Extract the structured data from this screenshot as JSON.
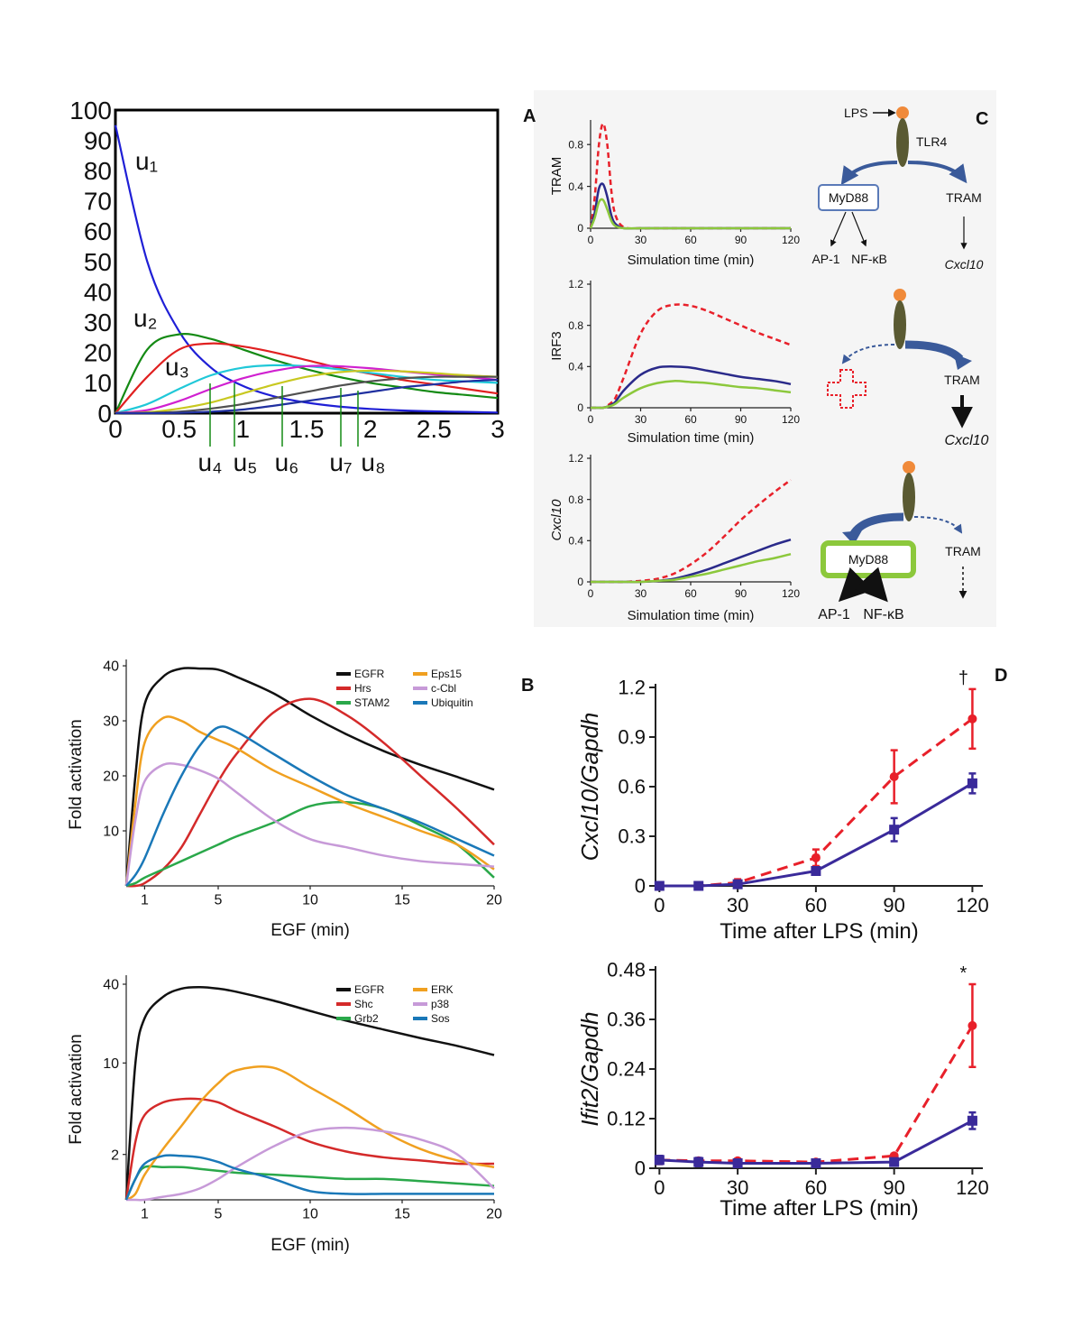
{
  "panel_labels": [
    "A",
    "B",
    "C",
    "D"
  ],
  "diagram": {
    "top": {
      "ligand": "LPS",
      "receptor": "TLR4",
      "adaptor": "MyD88",
      "tram": "TRAM",
      "ap1": "AP-1",
      "nfkb": "NF-κB",
      "target": "Cxcl10"
    },
    "middle": {
      "tram": "TRAM",
      "target": "Cxcl10"
    },
    "bottom": {
      "adaptor": "MyD88",
      "tram": "TRAM",
      "ap1": "AP-1",
      "nfkb": "NF-κB"
    }
  },
  "chart_data": [
    {
      "type": "line",
      "x": [
        0,
        0.25,
        0.5,
        0.75,
        1,
        1.25,
        1.5,
        1.75,
        2,
        2.25,
        2.5,
        2.75,
        3
      ],
      "xlim": [
        0,
        3
      ],
      "ylim": [
        0,
        100
      ],
      "xticks": [
        0,
        0.5,
        1,
        1.5,
        2,
        2.5,
        3
      ],
      "yticks": [
        0,
        10,
        20,
        30,
        40,
        50,
        60,
        70,
        80,
        90,
        100
      ],
      "series": [
        {
          "name": "u₁",
          "color": "#1f1fd6",
          "values": [
            95,
            50,
            27,
            15,
            9,
            5.5,
            3.5,
            2.2,
            1.4,
            0.9,
            0.6,
            0.4,
            0.2
          ]
        },
        {
          "name": "u₂",
          "color": "#148a14",
          "values": [
            0,
            21,
            26,
            24.5,
            21,
            17.5,
            14.5,
            12,
            10,
            8.5,
            7,
            6,
            5
          ]
        },
        {
          "name": "u₃",
          "color": "#e02020",
          "values": [
            0,
            12,
            21,
            23,
            22,
            20,
            17.5,
            15,
            13,
            11,
            9.5,
            8,
            6.5
          ]
        },
        {
          "name": "u₄",
          "color": "#20c8d8",
          "values": [
            0,
            3,
            8,
            12.5,
            15,
            15.8,
            15.5,
            14.5,
            13.3,
            12,
            11,
            10.5,
            10
          ]
        },
        {
          "name": "u₅",
          "color": "#d020d0",
          "values": [
            0,
            1,
            4,
            8,
            11.5,
            14,
            15.5,
            15.5,
            14.8,
            13.8,
            12.8,
            12,
            11
          ]
        },
        {
          "name": "u₆",
          "color": "#c8c820",
          "values": [
            0,
            0.3,
            1.5,
            3.5,
            6.5,
            9.5,
            12,
            13.5,
            14,
            13.8,
            13.2,
            12.5,
            12
          ]
        },
        {
          "name": "u₇",
          "color": "#505050",
          "values": [
            0,
            0.1,
            0.5,
            1.5,
            3,
            5,
            7,
            9,
            10.5,
            11.5,
            12,
            12,
            12
          ]
        },
        {
          "name": "u₈",
          "color": "#2030a0",
          "values": [
            0,
            0,
            0.1,
            0.5,
            1.2,
            2.5,
            4,
            5.5,
            7,
            8.5,
            9.5,
            10.5,
            11
          ]
        }
      ]
    },
    {
      "type": "line",
      "ylabel": "TRAM",
      "xlabel": "Simulation time (min)",
      "x": [
        0,
        2.5,
        5,
        7.5,
        10,
        12.5,
        15,
        20,
        30,
        40,
        50,
        60,
        70,
        80,
        90,
        100,
        110,
        120
      ],
      "xlim": [
        0,
        120
      ],
      "ylim": [
        0,
        1
      ],
      "xticks": [
        0,
        30,
        60,
        90,
        120
      ],
      "yticks": [
        0,
        0.4,
        0.8
      ],
      "series": [
        {
          "color": "#e8202a",
          "line_style": "dashed",
          "values": [
            0,
            0.3,
            0.8,
            1.0,
            0.8,
            0.35,
            0.12,
            0.01,
            0,
            0,
            0,
            0,
            0,
            0,
            0,
            0,
            0,
            0
          ]
        },
        {
          "color": "#2a2a8a",
          "values": [
            0,
            0.15,
            0.38,
            0.42,
            0.3,
            0.12,
            0.04,
            0,
            0,
            0,
            0,
            0,
            0,
            0,
            0,
            0,
            0,
            0
          ]
        },
        {
          "color": "#8cc83c",
          "values": [
            0,
            0.1,
            0.25,
            0.27,
            0.18,
            0.07,
            0.02,
            0,
            0,
            0,
            0,
            0,
            0,
            0,
            0,
            0,
            0,
            0
          ]
        }
      ]
    },
    {
      "type": "line",
      "ylabel": "IRF3",
      "xlabel": "Simulation time (min)",
      "x": [
        0,
        2.5,
        5,
        7.5,
        10,
        12.5,
        15,
        20,
        30,
        40,
        50,
        60,
        70,
        80,
        90,
        100,
        110,
        120
      ],
      "xlim": [
        0,
        120
      ],
      "ylim": [
        0,
        1.2
      ],
      "xticks": [
        0,
        30,
        60,
        90,
        120
      ],
      "yticks": [
        0,
        0.4,
        0.8,
        1.2
      ],
      "series": [
        {
          "color": "#e8202a",
          "line_style": "dashed",
          "values": [
            0,
            0,
            0,
            0,
            0.02,
            0.05,
            0.1,
            0.3,
            0.72,
            0.94,
            1.0,
            0.99,
            0.94,
            0.87,
            0.8,
            0.73,
            0.67,
            0.61
          ]
        },
        {
          "color": "#2a2a8a",
          "values": [
            0,
            0,
            0,
            0,
            0.01,
            0.03,
            0.06,
            0.17,
            0.32,
            0.39,
            0.4,
            0.39,
            0.36,
            0.33,
            0.3,
            0.28,
            0.26,
            0.23
          ]
        },
        {
          "color": "#8cc83c",
          "values": [
            0,
            0,
            0,
            0,
            0.01,
            0.02,
            0.04,
            0.1,
            0.19,
            0.24,
            0.26,
            0.25,
            0.24,
            0.22,
            0.2,
            0.19,
            0.17,
            0.15
          ]
        }
      ]
    },
    {
      "type": "line",
      "ylabel": "Cxcl10",
      "xlabel": "Simulation time (min)",
      "x": [
        0,
        2.5,
        5,
        7.5,
        10,
        12.5,
        15,
        20,
        30,
        40,
        50,
        60,
        70,
        80,
        90,
        100,
        110,
        120
      ],
      "xlim": [
        0,
        120
      ],
      "ylim": [
        0,
        1.2
      ],
      "xticks": [
        0,
        30,
        60,
        90,
        120
      ],
      "yticks": [
        0,
        0.4,
        0.8,
        1.2
      ],
      "series": [
        {
          "color": "#e8202a",
          "line_style": "dashed",
          "values": [
            0,
            0,
            0,
            0,
            0,
            0,
            0,
            0,
            0.01,
            0.03,
            0.08,
            0.17,
            0.29,
            0.44,
            0.6,
            0.74,
            0.87,
            0.99
          ]
        },
        {
          "color": "#2a2a8a",
          "values": [
            0,
            0,
            0,
            0,
            0,
            0,
            0,
            0,
            0,
            0.01,
            0.03,
            0.07,
            0.12,
            0.18,
            0.24,
            0.3,
            0.36,
            0.41
          ]
        },
        {
          "color": "#8cc83c",
          "values": [
            0,
            0,
            0,
            0,
            0,
            0,
            0,
            0,
            0,
            0.01,
            0.02,
            0.05,
            0.08,
            0.12,
            0.16,
            0.2,
            0.23,
            0.27
          ]
        }
      ]
    },
    {
      "type": "line",
      "ylabel": "Fold activation",
      "xlabel": "EGF (min)",
      "legend": "top-right",
      "x": [
        0,
        0.5,
        1,
        2,
        3,
        4,
        5,
        6,
        8,
        10,
        12,
        14,
        16,
        18,
        20
      ],
      "xlim": [
        0,
        20
      ],
      "ylim": [
        0,
        40.5
      ],
      "xticks": [
        1,
        5,
        10,
        15,
        20
      ],
      "yticks": [
        10,
        20,
        30,
        40
      ],
      "series": [
        {
          "name": "EGFR",
          "color": "#111111",
          "values": [
            0,
            20,
            33,
            38,
            39.5,
            39.5,
            39.3,
            38,
            35,
            31,
            27.5,
            24.5,
            22,
            19.8,
            17.5
          ]
        },
        {
          "name": "Hrs",
          "color": "#d42a2a",
          "values": [
            0,
            0,
            0.5,
            3,
            7,
            13,
            19,
            24,
            31.5,
            34,
            31,
            26,
            20,
            14,
            7.5
          ]
        },
        {
          "name": "STAM2",
          "color": "#2aa84a",
          "values": [
            0,
            0.5,
            1.5,
            3,
            4.5,
            6,
            7.5,
            9,
            11.5,
            14.5,
            15.2,
            14,
            11,
            7.5,
            1.5
          ]
        },
        {
          "name": "Eps15",
          "color": "#f0a020",
          "values": [
            0,
            15,
            26,
            30.5,
            30,
            28,
            26.5,
            25,
            21,
            18,
            15,
            12.5,
            10,
            7.5,
            3
          ]
        },
        {
          "name": "c-Cbl",
          "color": "#c79ad8",
          "values": [
            0,
            12,
            19,
            22,
            22,
            21,
            19.5,
            17,
            12,
            8.5,
            7,
            5.5,
            4.5,
            4,
            3.5
          ]
        },
        {
          "name": "Ubiquitin",
          "color": "#1a78b8",
          "values": [
            0,
            2,
            5,
            13,
            20,
            25.5,
            28.8,
            28,
            24,
            20,
            16.5,
            14,
            11.5,
            8.5,
            5.5
          ]
        }
      ]
    },
    {
      "type": "line",
      "ylabel": "Fold activation",
      "xlabel": "EGF (min)",
      "legend": "top-right",
      "yscale": "log",
      "x": [
        0,
        0.5,
        1,
        2,
        3,
        4,
        5,
        6,
        8,
        10,
        12,
        14,
        16,
        18,
        20
      ],
      "xlim": [
        0,
        20
      ],
      "ylim": [
        0.9,
        44
      ],
      "xticks": [
        1,
        5,
        10,
        15,
        20
      ],
      "yticks": [
        2,
        10,
        40
      ],
      "series": [
        {
          "name": "EGFR",
          "color": "#111111",
          "values": [
            0.9,
            10,
            22,
            32,
            37,
            38,
            37,
            35,
            30,
            25,
            21,
            18,
            15.5,
            13.5,
            11.5
          ]
        },
        {
          "name": "Shc",
          "color": "#d42a2a",
          "values": [
            0.9,
            2.5,
            4,
            5,
            5.3,
            5.3,
            5,
            4.3,
            3.3,
            2.5,
            2.1,
            1.9,
            1.8,
            1.7,
            1.7
          ]
        },
        {
          "name": "Grb2",
          "color": "#2aa84a",
          "values": [
            0.9,
            1.3,
            1.6,
            1.6,
            1.6,
            1.55,
            1.5,
            1.45,
            1.4,
            1.35,
            1.3,
            1.3,
            1.25,
            1.2,
            1.15
          ]
        },
        {
          "name": "ERK",
          "color": "#f0a020",
          "values": [
            0.9,
            1,
            1.4,
            2.2,
            3.3,
            5,
            7,
            8.8,
            9.2,
            6.5,
            4.5,
            3,
            2.2,
            1.8,
            1.6
          ]
        },
        {
          "name": "p38",
          "color": "#c79ad8",
          "values": [
            0.9,
            0.9,
            0.9,
            0.95,
            1,
            1.1,
            1.3,
            1.6,
            2.3,
            3,
            3.2,
            3,
            2.6,
            2,
            1.1
          ]
        },
        {
          "name": "Sos",
          "color": "#1a78b8",
          "values": [
            0.9,
            1.3,
            1.7,
            1.95,
            1.95,
            1.9,
            1.75,
            1.55,
            1.3,
            1.05,
            1,
            1,
            1,
            1,
            1
          ]
        }
      ]
    },
    {
      "type": "line",
      "ylabel": "Cxcl10/Gapdh",
      "xlabel": "Time after LPS (min)",
      "annotation": "†",
      "x": [
        0,
        15,
        30,
        60,
        90,
        120
      ],
      "xlim": [
        -1.5,
        124
      ],
      "ylim": [
        0,
        1.2
      ],
      "xticks": [
        0,
        30,
        60,
        90,
        120
      ],
      "yticks": [
        0,
        0.3,
        0.6,
        0.9,
        1.2
      ],
      "series": [
        {
          "color": "#e8202a",
          "line_style": "dashed",
          "marker": "circle",
          "values": [
            0,
            0,
            0.02,
            0.17,
            0.66,
            1.01
          ],
          "errors": [
            0.02,
            0.01,
            0.02,
            0.05,
            0.16,
            0.18
          ]
        },
        {
          "color": "#3a2a9a",
          "marker": "square",
          "values": [
            0,
            0,
            0.01,
            0.09,
            0.34,
            0.62
          ],
          "errors": [
            0.02,
            0.01,
            0.01,
            0.02,
            0.07,
            0.06
          ]
        }
      ]
    },
    {
      "type": "line",
      "ylabel": "Ifit2/Gapdh",
      "xlabel": "Time after LPS (min)",
      "annotation": "*",
      "x": [
        0,
        15,
        30,
        60,
        90,
        120
      ],
      "xlim": [
        -1.5,
        124
      ],
      "ylim": [
        0,
        0.48
      ],
      "xticks": [
        0,
        30,
        60,
        90,
        120
      ],
      "yticks": [
        0,
        0.12,
        0.24,
        0.36,
        0.48
      ],
      "series": [
        {
          "color": "#e8202a",
          "line_style": "dashed",
          "marker": "circle",
          "values": [
            0.02,
            0.018,
            0.018,
            0.015,
            0.03,
            0.345
          ],
          "errors": [
            0.01,
            0.005,
            0.005,
            0.005,
            0.005,
            0.1
          ]
        },
        {
          "color": "#3a2a9a",
          "marker": "square",
          "values": [
            0.02,
            0.015,
            0.012,
            0.012,
            0.015,
            0.115
          ],
          "errors": [
            0.01,
            0.01,
            0.005,
            0.005,
            0.005,
            0.02
          ]
        }
      ]
    }
  ]
}
